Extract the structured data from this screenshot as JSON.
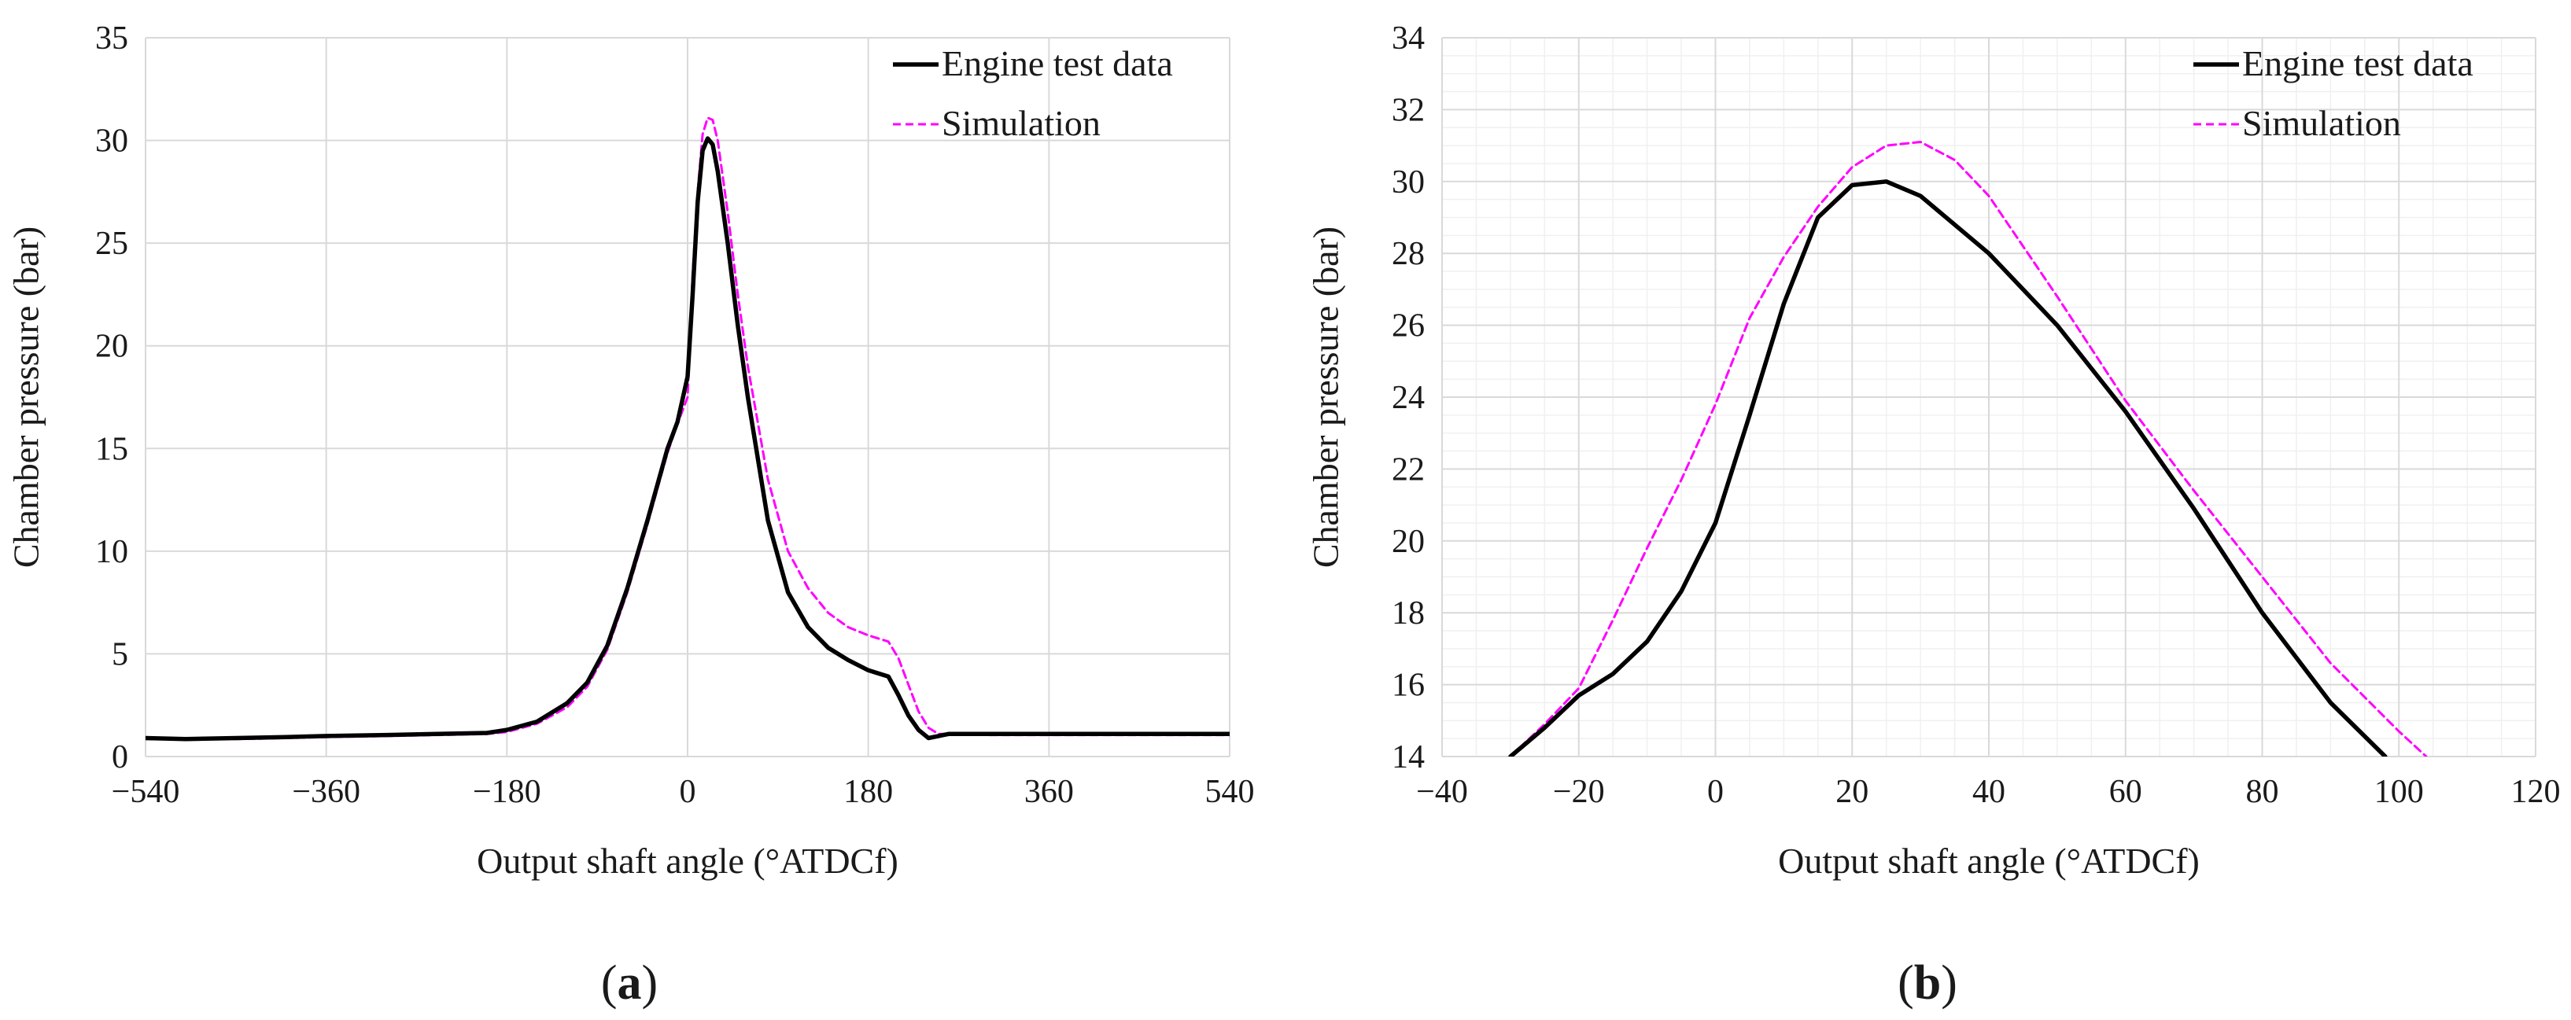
{
  "chart_data": [
    {
      "type": "line",
      "panel_label": "a",
      "xlabel": "Output shaft angle (°ATDCf)",
      "ylabel": "Chamber pressure (bar)",
      "xlim": [
        -540,
        540
      ],
      "ylim": [
        0,
        35
      ],
      "xticks": [
        -540,
        -360,
        -180,
        0,
        180,
        360,
        540
      ],
      "xtick_labels": [
        "−540",
        "−360",
        "−180",
        "0",
        "180",
        "360",
        "540"
      ],
      "yticks": [
        0,
        5,
        10,
        15,
        20,
        25,
        30,
        35
      ],
      "ytick_labels": [
        "0",
        "5",
        "10",
        "15",
        "20",
        "25",
        "30",
        "35"
      ],
      "grid": true,
      "legend": "top-right",
      "series": [
        {
          "name": "Engine test data",
          "style": "solid",
          "color": "#000000",
          "x": [
            -540,
            -500,
            -450,
            -400,
            -360,
            -300,
            -250,
            -200,
            -180,
            -150,
            -120,
            -100,
            -80,
            -60,
            -40,
            -20,
            -10,
            0,
            5,
            10,
            15,
            20,
            25,
            30,
            40,
            50,
            60,
            80,
            100,
            120,
            140,
            160,
            180,
            200,
            210,
            220,
            230,
            240,
            250,
            255,
            260,
            300,
            360,
            450,
            540
          ],
          "values": [
            0.9,
            0.85,
            0.9,
            0.95,
            1.0,
            1.05,
            1.1,
            1.15,
            1.3,
            1.7,
            2.6,
            3.6,
            5.4,
            8.2,
            11.5,
            15.0,
            16.3,
            18.5,
            22.5,
            27.0,
            29.5,
            30.1,
            29.8,
            28.5,
            25.0,
            21.0,
            17.5,
            11.5,
            8.0,
            6.3,
            5.3,
            4.7,
            4.2,
            3.9,
            3.0,
            2.0,
            1.3,
            0.9,
            1.0,
            1.05,
            1.1,
            1.1,
            1.1,
            1.1,
            1.1
          ]
        },
        {
          "name": "Simulation",
          "style": "dashed",
          "color": "#ff00ff",
          "x": [
            -540,
            -500,
            -450,
            -400,
            -360,
            -300,
            -250,
            -200,
            -180,
            -150,
            -120,
            -100,
            -80,
            -60,
            -40,
            -20,
            -10,
            0,
            5,
            10,
            15,
            20,
            25,
            30,
            40,
            50,
            60,
            80,
            100,
            120,
            140,
            160,
            180,
            200,
            210,
            220,
            230,
            240,
            250,
            255,
            260,
            300,
            360,
            450,
            540
          ],
          "values": [
            0.85,
            0.85,
            0.85,
            0.9,
            0.95,
            1.0,
            1.05,
            1.1,
            1.2,
            1.6,
            2.4,
            3.4,
            5.2,
            8.0,
            11.3,
            14.8,
            16.2,
            17.5,
            23.5,
            27.5,
            30.3,
            31.1,
            31.0,
            30.0,
            26.5,
            22.5,
            19.0,
            13.5,
            10.0,
            8.2,
            7.0,
            6.3,
            5.9,
            5.6,
            4.8,
            3.5,
            2.2,
            1.4,
            1.1,
            1.1,
            1.1,
            1.05,
            1.05,
            1.05,
            1.05
          ]
        }
      ]
    },
    {
      "type": "line",
      "panel_label": "b",
      "xlabel": "Output shaft angle (°ATDCf)",
      "ylabel": "Chamber pressure (bar)",
      "xlim": [
        -40,
        120
      ],
      "ylim": [
        14,
        34
      ],
      "xticks": [
        -40,
        -20,
        0,
        20,
        40,
        60,
        80,
        100,
        120
      ],
      "xtick_labels": [
        "−40",
        "−20",
        "0",
        "20",
        "40",
        "60",
        "80",
        "100",
        "120"
      ],
      "yticks": [
        14,
        16,
        18,
        20,
        22,
        24,
        26,
        28,
        30,
        32,
        34
      ],
      "ytick_labels": [
        "14",
        "16",
        "18",
        "20",
        "22",
        "24",
        "26",
        "28",
        "30",
        "32",
        "34"
      ],
      "grid": true,
      "legend": "top-right",
      "series": [
        {
          "name": "Engine test data",
          "style": "solid",
          "color": "#000000",
          "x": [
            -30,
            -25,
            -20,
            -15,
            -10,
            -5,
            0,
            5,
            10,
            15,
            20,
            25,
            30,
            40,
            50,
            60,
            70,
            80,
            90,
            98
          ],
          "values": [
            14.0,
            14.8,
            15.7,
            16.3,
            17.2,
            18.6,
            20.5,
            23.5,
            26.6,
            29.0,
            29.9,
            30.0,
            29.6,
            28.0,
            26.0,
            23.6,
            20.9,
            18.0,
            15.5,
            14.0
          ]
        },
        {
          "name": "Simulation",
          "style": "dashed",
          "color": "#ff00ff",
          "x": [
            -30,
            -25,
            -20,
            -15,
            -10,
            -5,
            0,
            5,
            10,
            15,
            20,
            25,
            30,
            35,
            40,
            50,
            60,
            70,
            80,
            90,
            100,
            104
          ],
          "values": [
            14.0,
            14.9,
            15.9,
            17.8,
            19.8,
            21.7,
            23.8,
            26.2,
            27.9,
            29.3,
            30.4,
            31.0,
            31.1,
            30.6,
            29.6,
            26.8,
            23.9,
            21.4,
            19.0,
            16.6,
            14.7,
            14.0
          ]
        }
      ]
    }
  ]
}
